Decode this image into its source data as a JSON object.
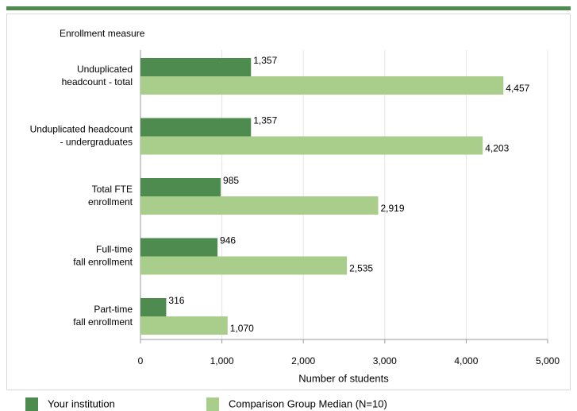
{
  "chart_data": {
    "type": "hbar",
    "y_axis_label": "Enrollment measure",
    "x_axis_label": "Number of students",
    "categories": [
      [
        "Unduplicated",
        "headcount - total"
      ],
      [
        "Unduplicated headcount",
        "- undergraduates"
      ],
      [
        "Total FTE",
        "enrollment"
      ],
      [
        "Full-time",
        "fall enrollment"
      ],
      [
        "Part-time",
        "fall enrollment"
      ]
    ],
    "series": [
      {
        "name": "Your institution",
        "color": "#4e8b4e",
        "values": [
          1357,
          1357,
          985,
          946,
          316
        ],
        "value_labels": [
          "1,357",
          "1,357",
          "985",
          "946",
          "316"
        ]
      },
      {
        "name": "Comparison Group Median (N=10)",
        "color": "#a9cd8a",
        "values": [
          4457,
          4203,
          2919,
          2535,
          1070
        ],
        "value_labels": [
          "4,457",
          "4,203",
          "2,919",
          "2,535",
          "1,070"
        ]
      }
    ],
    "xlim": [
      0,
      5000
    ],
    "xticks": [
      0,
      {
        "value": 1000,
        "label": "1,000"
      },
      {
        "value": 2000,
        "label": "2,000"
      },
      {
        "value": 3000,
        "label": "3,000"
      },
      {
        "value": 4000,
        "label": "4,000"
      },
      {
        "value": 5000,
        "label": "5,000"
      }
    ],
    "grid": true
  }
}
